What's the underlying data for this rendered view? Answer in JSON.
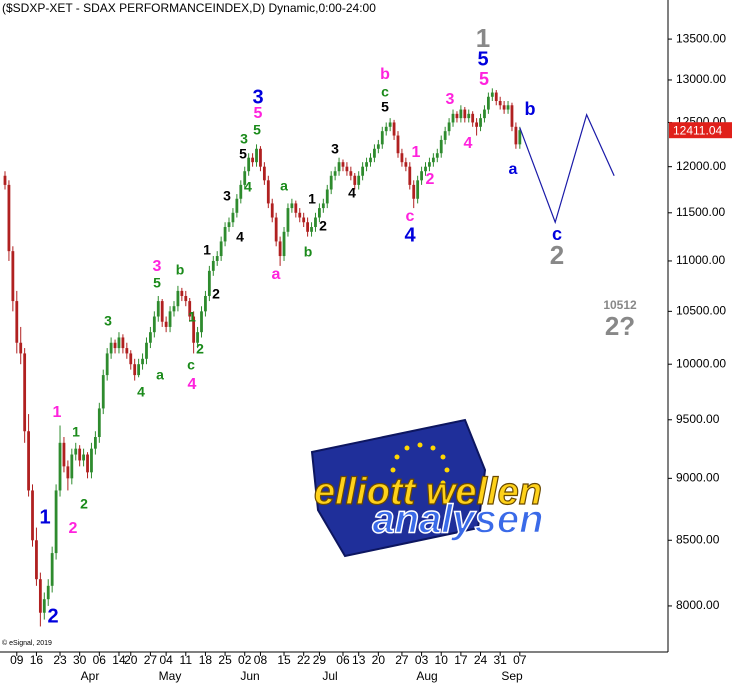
{
  "chart_data": {
    "type": "candlestick",
    "title": "($SDXP-XET - SDAX PERFORMANCEINDEX,D) Dynamic,0:00-24:00",
    "source": "© eSignal, 2019",
    "log_scale": true,
    "up_color": "#2e8b2e",
    "down_color": "#b02020",
    "ylim": [
      7667,
      13996
    ],
    "yticks": [
      {
        "value": 8000,
        "label": "8000.00"
      },
      {
        "value": 8500,
        "label": "8500.00"
      },
      {
        "value": 9000,
        "label": "9000.00"
      },
      {
        "value": 9500,
        "label": "9500.00"
      },
      {
        "value": 10000,
        "label": "10000.00"
      },
      {
        "value": 10500,
        "label": "10500.00"
      },
      {
        "value": 11000,
        "label": "11000.00"
      },
      {
        "value": 11500,
        "label": "11500.00"
      },
      {
        "value": 12000,
        "label": "12000.00"
      },
      {
        "value": 12500,
        "label": "12500.00"
      },
      {
        "value": 13000,
        "label": "13000.00"
      },
      {
        "value": 13500,
        "label": "13500.00"
      }
    ],
    "categories": [
      null,
      null,
      null,
      "09",
      null,
      null,
      null,
      null,
      "16",
      null,
      null,
      null,
      null,
      null,
      "23",
      null,
      null,
      null,
      null,
      "30",
      null,
      null,
      null,
      null,
      "06",
      null,
      null,
      null,
      null,
      "14",
      null,
      null,
      "20",
      null,
      null,
      null,
      null,
      "27",
      null,
      null,
      null,
      "04",
      null,
      null,
      null,
      null,
      "11",
      null,
      null,
      null,
      null,
      "18",
      null,
      null,
      null,
      null,
      "25",
      null,
      null,
      null,
      null,
      "02",
      null,
      null,
      null,
      "08",
      null,
      null,
      null,
      null,
      null,
      "15",
      null,
      null,
      null,
      null,
      "22",
      null,
      null,
      null,
      "29",
      null,
      null,
      null,
      null,
      null,
      "06",
      null,
      null,
      null,
      "13",
      null,
      null,
      null,
      null,
      "20",
      null,
      null,
      null,
      null,
      null,
      "27",
      null,
      null,
      null,
      null,
      "03",
      null,
      null,
      null,
      null,
      "10",
      null,
      null,
      null,
      null,
      "17",
      null,
      null,
      null,
      null,
      "24",
      null,
      null,
      null,
      null,
      "31",
      null,
      null,
      null,
      null,
      "07"
    ],
    "months": [
      "Apr",
      "May",
      "Jun",
      "Jul",
      "Aug",
      "Sep"
    ],
    "candles": [
      [
        11900,
        11950,
        11750,
        11800
      ],
      [
        11800,
        11850,
        11000,
        11100
      ],
      [
        11100,
        11150,
        10500,
        10600
      ],
      [
        10600,
        10700,
        10100,
        10200
      ],
      [
        10200,
        10350,
        10000,
        10100
      ],
      [
        10100,
        10150,
        9300,
        9400
      ],
      [
        9400,
        9550,
        8850,
        8900
      ],
      [
        8900,
        8950,
        8450,
        8500
      ],
      [
        8500,
        8600,
        8150,
        8200
      ],
      [
        8200,
        8250,
        7850,
        7950
      ],
      [
        7950,
        8100,
        7900,
        8050
      ],
      [
        8050,
        8200,
        8000,
        8150
      ],
      [
        8150,
        8450,
        8100,
        8400
      ],
      [
        8400,
        8950,
        8350,
        8900
      ],
      [
        8900,
        9450,
        8850,
        9300
      ],
      [
        9300,
        9350,
        9050,
        9100
      ],
      [
        9100,
        9150,
        8900,
        9000
      ],
      [
        9000,
        9250,
        8950,
        9200
      ],
      [
        9200,
        9300,
        9150,
        9250
      ],
      [
        9250,
        9280,
        9100,
        9150
      ],
      [
        9150,
        9250,
        9100,
        9200
      ],
      [
        9200,
        9220,
        9000,
        9050
      ],
      [
        9050,
        9300,
        9000,
        9250
      ],
      [
        9250,
        9400,
        9200,
        9350
      ],
      [
        9350,
        9650,
        9300,
        9600
      ],
      [
        9600,
        9950,
        9550,
        9900
      ],
      [
        9900,
        10150,
        9850,
        10100
      ],
      [
        10100,
        10250,
        10050,
        10200
      ],
      [
        10200,
        10230,
        10100,
        10150
      ],
      [
        10150,
        10300,
        10100,
        10250
      ],
      [
        10250,
        10280,
        10100,
        10150
      ],
      [
        10150,
        10200,
        10050,
        10100
      ],
      [
        10100,
        10130,
        9950,
        10000
      ],
      [
        10000,
        10050,
        9850,
        9900
      ],
      [
        9900,
        10050,
        9880,
        10000
      ],
      [
        10000,
        10100,
        9950,
        10050
      ],
      [
        10050,
        10250,
        10000,
        10200
      ],
      [
        10200,
        10350,
        10150,
        10300
      ],
      [
        10300,
        10500,
        10250,
        10450
      ],
      [
        10450,
        10650,
        10400,
        10600
      ],
      [
        10600,
        10620,
        10350,
        10400
      ],
      [
        10400,
        10450,
        10300,
        10350
      ],
      [
        10350,
        10550,
        10300,
        10500
      ],
      [
        10500,
        10600,
        10450,
        10550
      ],
      [
        10550,
        10750,
        10500,
        10700
      ],
      [
        10700,
        10730,
        10600,
        10650
      ],
      [
        10650,
        10700,
        10550,
        10600
      ],
      [
        10600,
        10630,
        10400,
        10450
      ],
      [
        10450,
        10500,
        10100,
        10200
      ],
      [
        10200,
        10350,
        10150,
        10300
      ],
      [
        10300,
        10550,
        10250,
        10500
      ],
      [
        10500,
        10700,
        10450,
        10650
      ],
      [
        10650,
        10950,
        10600,
        10900
      ],
      [
        10900,
        11050,
        10850,
        11000
      ],
      [
        11000,
        11100,
        10950,
        11050
      ],
      [
        11050,
        11250,
        11000,
        11200
      ],
      [
        11200,
        11400,
        11150,
        11350
      ],
      [
        11350,
        11450,
        11300,
        11400
      ],
      [
        11400,
        11550,
        11350,
        11500
      ],
      [
        11500,
        11700,
        11450,
        11650
      ],
      [
        11650,
        11850,
        11600,
        11800
      ],
      [
        11800,
        12000,
        11750,
        11950
      ],
      [
        11950,
        12150,
        11900,
        12100
      ],
      [
        12100,
        12150,
        12000,
        12050
      ],
      [
        12050,
        12250,
        12000,
        12200
      ],
      [
        12200,
        12230,
        11950,
        12000
      ],
      [
        12000,
        12050,
        11800,
        11850
      ],
      [
        11850,
        11900,
        11550,
        11600
      ],
      [
        11600,
        11650,
        11400,
        11450
      ],
      [
        11450,
        11500,
        11150,
        11200
      ],
      [
        11200,
        11250,
        10950,
        11050
      ],
      [
        11050,
        11350,
        11000,
        11300
      ],
      [
        11300,
        11600,
        11250,
        11550
      ],
      [
        11550,
        11650,
        11500,
        11600
      ],
      [
        11600,
        11630,
        11450,
        11500
      ],
      [
        11500,
        11550,
        11400,
        11450
      ],
      [
        11450,
        11500,
        11350,
        11400
      ],
      [
        11400,
        11450,
        11250,
        11300
      ],
      [
        11300,
        11400,
        11250,
        11350
      ],
      [
        11350,
        11500,
        11300,
        11450
      ],
      [
        11450,
        11600,
        11400,
        11550
      ],
      [
        11550,
        11650,
        11500,
        11600
      ],
      [
        11600,
        11800,
        11550,
        11750
      ],
      [
        11750,
        11950,
        11700,
        11900
      ],
      [
        11900,
        12000,
        11850,
        11950
      ],
      [
        11950,
        12100,
        11900,
        12050
      ],
      [
        12050,
        12080,
        11950,
        12000
      ],
      [
        12000,
        12050,
        11900,
        11950
      ],
      [
        11950,
        12000,
        11850,
        11900
      ],
      [
        11900,
        11930,
        11750,
        11800
      ],
      [
        11800,
        11950,
        11750,
        11900
      ],
      [
        11900,
        12050,
        11850,
        12000
      ],
      [
        12000,
        12100,
        11950,
        12050
      ],
      [
        12050,
        12150,
        12000,
        12100
      ],
      [
        12100,
        12250,
        12050,
        12200
      ],
      [
        12200,
        12300,
        12150,
        12250
      ],
      [
        12250,
        12450,
        12200,
        12400
      ],
      [
        12400,
        12500,
        12350,
        12450
      ],
      [
        12450,
        12550,
        12400,
        12500
      ],
      [
        12500,
        12530,
        12300,
        12350
      ],
      [
        12350,
        12400,
        12100,
        12150
      ],
      [
        12150,
        12200,
        12000,
        12050
      ],
      [
        12050,
        12100,
        11950,
        12000
      ],
      [
        12000,
        12050,
        11750,
        11800
      ],
      [
        11800,
        11850,
        11550,
        11650
      ],
      [
        11650,
        11900,
        11600,
        11850
      ],
      [
        11850,
        12000,
        11800,
        11950
      ],
      [
        11950,
        12050,
        11900,
        12000
      ],
      [
        12000,
        12100,
        11950,
        12050
      ],
      [
        12050,
        12150,
        12000,
        12100
      ],
      [
        12100,
        12200,
        12050,
        12150
      ],
      [
        12150,
        12350,
        12100,
        12300
      ],
      [
        12300,
        12450,
        12250,
        12400
      ],
      [
        12400,
        12550,
        12350,
        12500
      ],
      [
        12500,
        12650,
        12450,
        12600
      ],
      [
        12600,
        12630,
        12500,
        12550
      ],
      [
        12550,
        12700,
        12500,
        12650
      ],
      [
        12650,
        12680,
        12500,
        12550
      ],
      [
        12550,
        12650,
        12500,
        12600
      ],
      [
        12600,
        12630,
        12450,
        12500
      ],
      [
        12500,
        12550,
        12350,
        12450
      ],
      [
        12450,
        12600,
        12400,
        12550
      ],
      [
        12550,
        12700,
        12500,
        12650
      ],
      [
        12650,
        12850,
        12600,
        12800
      ],
      [
        12800,
        12900,
        12750,
        12850
      ],
      [
        12850,
        12880,
        12700,
        12750
      ],
      [
        12750,
        12800,
        12650,
        12700
      ],
      [
        12700,
        12750,
        12600,
        12650
      ],
      [
        12650,
        12750,
        12600,
        12700
      ],
      [
        12700,
        12730,
        12400,
        12450
      ],
      [
        12450,
        12500,
        12200,
        12250
      ],
      [
        12250,
        12450,
        12200,
        12411.04
      ]
    ],
    "projection": {
      "color": "#1a1aa8",
      "x": [
        131,
        140,
        148,
        155
      ],
      "values": [
        12440,
        11400,
        12590,
        11900
      ]
    },
    "annotations": [
      {
        "text": "1",
        "color": "#888888"
      },
      {
        "text": "5",
        "color": "#0000dd"
      },
      {
        "text": "5",
        "color": "#ff22dd"
      },
      {
        "text": "3",
        "color": "#ff22dd"
      },
      {
        "text": "4",
        "color": "#ff22dd"
      },
      {
        "text": "b",
        "color": "#0000dd"
      },
      {
        "text": "a",
        "color": "#0000dd"
      },
      {
        "text": "b",
        "color": "#ff22dd"
      },
      {
        "text": "c",
        "color": "#1a8a1a"
      },
      {
        "text": "5",
        "color": "#000000"
      },
      {
        "text": "1",
        "color": "#ff22dd"
      },
      {
        "text": "2",
        "color": "#ff22dd"
      },
      {
        "text": "c",
        "color": "#ff22dd"
      },
      {
        "text": "4",
        "color": "#0000dd"
      },
      {
        "text": "3",
        "color": "#000000"
      },
      {
        "text": "4",
        "color": "#000000"
      },
      {
        "text": "a",
        "color": "#1a8a1a"
      },
      {
        "text": "1",
        "color": "#000000"
      },
      {
        "text": "2",
        "color": "#000000"
      },
      {
        "text": "b",
        "color": "#1a8a1a"
      },
      {
        "text": "a",
        "color": "#ff22dd"
      },
      {
        "text": "3",
        "color": "#0000dd"
      },
      {
        "text": "5",
        "color": "#ff22dd"
      },
      {
        "text": "3",
        "color": "#1a8a1a"
      },
      {
        "text": "5",
        "color": "#1a8a1a"
      },
      {
        "text": "5",
        "color": "#000000"
      },
      {
        "text": "4",
        "color": "#1a8a1a"
      },
      {
        "text": "3",
        "color": "#000000"
      },
      {
        "text": "4",
        "color": "#000000"
      },
      {
        "text": "1",
        "color": "#000000"
      },
      {
        "text": "2",
        "color": "#000000"
      },
      {
        "text": "3",
        "color": "#ff22dd"
      },
      {
        "text": "5",
        "color": "#1a8a1a"
      },
      {
        "text": "b",
        "color": "#1a8a1a"
      },
      {
        "text": "1",
        "color": "#1a8a1a"
      },
      {
        "text": "2",
        "color": "#1a8a1a"
      },
      {
        "text": "c",
        "color": "#1a8a1a"
      },
      {
        "text": "4",
        "color": "#ff22dd"
      },
      {
        "text": "3",
        "color": "#1a8a1a"
      },
      {
        "text": "a",
        "color": "#1a8a1a"
      },
      {
        "text": "4",
        "color": "#1a8a1a"
      },
      {
        "text": "1",
        "color": "#ff22dd"
      },
      {
        "text": "1",
        "color": "#1a8a1a"
      },
      {
        "text": "2",
        "color": "#1a8a1a"
      },
      {
        "text": "2",
        "color": "#ff22dd"
      },
      {
        "text": "1",
        "color": "#0000dd"
      },
      {
        "text": "2",
        "color": "#0000dd"
      },
      {
        "text": "c",
        "color": "#0000dd"
      },
      {
        "text": "2",
        "color": "#888888"
      },
      {
        "text": "10512",
        "color": "#888888"
      },
      {
        "text": "2?",
        "color": "#888888"
      }
    ],
    "logo": {
      "line1": "elliott wellen",
      "line2": "analysen"
    }
  }
}
